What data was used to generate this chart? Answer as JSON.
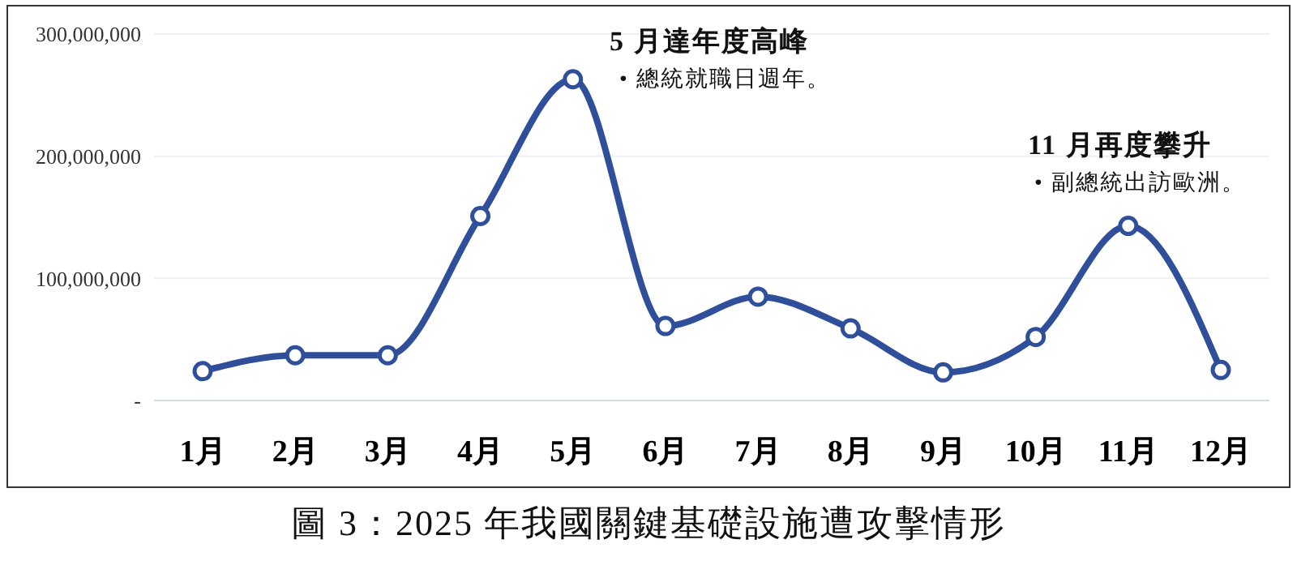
{
  "chart_data": {
    "type": "line",
    "title": "圖 3：2025 年我國關鍵基礎設施遭攻擊情形",
    "categories": [
      "1月",
      "2月",
      "3月",
      "4月",
      "5月",
      "6月",
      "7月",
      "8月",
      "9月",
      "10月",
      "11月",
      "12月"
    ],
    "series": [
      {
        "color": "#2f4f9a",
        "values": [
          24000000,
          37000000,
          37000000,
          151000000,
          263000000,
          61000000,
          85000000,
          59000000,
          23000000,
          52000000,
          143000000,
          25000000
        ]
      }
    ],
    "ylim": [
      0,
      300000000
    ],
    "yticks": [
      {
        "value": 0,
        "label": "-"
      },
      {
        "value": 100000000,
        "label": "100,000,000"
      },
      {
        "value": 200000000,
        "label": "200,000,000"
      },
      {
        "value": 300000000,
        "label": "300,000,000"
      }
    ],
    "grid": "y",
    "marker": "circle",
    "legend": false,
    "annotations": [
      "5 月達年度高峰",
      "• 總統就職日週年。",
      "11 月再度攀升",
      "• 副總統出訪歐洲。"
    ]
  }
}
